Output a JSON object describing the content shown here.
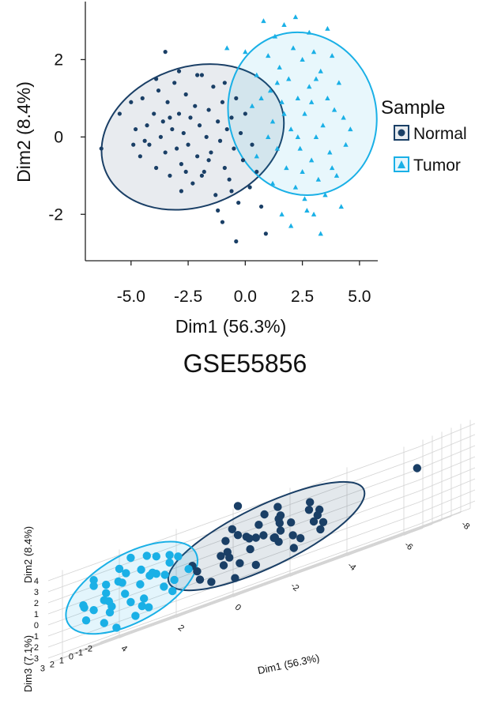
{
  "chart_data": [
    {
      "type": "scatter",
      "title": "",
      "xlabel": "Dim1 (56.3%)",
      "ylabel": "Dim2 (8.4%)",
      "xlim": [
        -7,
        5.8
      ],
      "ylim": [
        -3.2,
        3.5
      ],
      "xticks": [
        -5.0,
        -2.5,
        0.0,
        2.5,
        5.0
      ],
      "xtick_labels": [
        "-5.0",
        "-2.5",
        "0.0",
        "2.5",
        "5.0"
      ],
      "yticks": [
        2,
        0,
        -2
      ],
      "ytick_labels": [
        "2",
        "0",
        "-2"
      ],
      "grid": false,
      "legend": {
        "title": "Sample",
        "placement": "right",
        "entries": [
          "Normal",
          "Tumor"
        ]
      },
      "colors": {
        "Normal": "#1a3f66",
        "Tumor": "#1ab0e6"
      },
      "series": [
        {
          "name": "Normal",
          "marker": "circle",
          "ellipse": {
            "center": [
              -2.3,
              0.0
            ],
            "semi_axes": [
              4.1,
              1.8
            ],
            "angle_deg": -20
          },
          "points": [
            [
              -6.3,
              -0.3
            ],
            [
              -5.5,
              0.6
            ],
            [
              -5.0,
              0.9
            ],
            [
              -4.8,
              0.2
            ],
            [
              -4.6,
              -0.5
            ],
            [
              -4.5,
              1.0
            ],
            [
              -4.3,
              0.3
            ],
            [
              -4.2,
              -0.2
            ],
            [
              -4.0,
              0.6
            ],
            [
              -3.9,
              -0.8
            ],
            [
              -3.8,
              1.2
            ],
            [
              -3.7,
              0.0
            ],
            [
              -3.6,
              0.4
            ],
            [
              -3.5,
              -0.4
            ],
            [
              -3.4,
              0.9
            ],
            [
              -3.3,
              -1.0
            ],
            [
              -3.2,
              0.2
            ],
            [
              -3.1,
              1.4
            ],
            [
              -3.0,
              -0.3
            ],
            [
              -2.9,
              0.6
            ],
            [
              -2.8,
              -0.7
            ],
            [
              -2.7,
              0.1
            ],
            [
              -2.6,
              1.1
            ],
            [
              -2.5,
              -0.2
            ],
            [
              -2.4,
              0.5
            ],
            [
              -2.3,
              -1.2
            ],
            [
              -2.2,
              0.8
            ],
            [
              -2.1,
              -0.5
            ],
            [
              -2.0,
              0.3
            ],
            [
              -1.9,
              1.6
            ],
            [
              -1.8,
              -0.9
            ],
            [
              -1.7,
              0.0
            ],
            [
              -1.6,
              0.7
            ],
            [
              -1.5,
              -0.4
            ],
            [
              -1.4,
              1.3
            ],
            [
              -1.3,
              -1.5
            ],
            [
              -1.2,
              0.4
            ],
            [
              -1.1,
              -0.1
            ],
            [
              -1.0,
              0.9
            ],
            [
              -0.9,
              -0.8
            ],
            [
              -0.8,
              0.2
            ],
            [
              -0.7,
              -1.1
            ],
            [
              -0.6,
              0.5
            ],
            [
              -0.5,
              -0.3
            ],
            [
              -0.4,
              1.0
            ],
            [
              -0.3,
              -1.7
            ],
            [
              -0.2,
              0.1
            ],
            [
              -0.1,
              -0.6
            ],
            [
              0.0,
              0.6
            ],
            [
              0.2,
              -1.3
            ],
            [
              0.3,
              -0.2
            ],
            [
              0.5,
              -0.9
            ],
            [
              0.7,
              -1.8
            ],
            [
              0.9,
              -2.5
            ],
            [
              -0.4,
              -2.7
            ],
            [
              -3.5,
              2.2
            ],
            [
              -2.1,
              1.6
            ],
            [
              -1.2,
              -1.9
            ],
            [
              -2.8,
              -1.4
            ],
            [
              -3.9,
              1.5
            ],
            [
              -4.4,
              -0.1
            ],
            [
              -1.6,
              -0.6
            ],
            [
              -2.6,
              -0.9
            ],
            [
              -0.9,
              1.4
            ],
            [
              -3.3,
              0.5
            ],
            [
              -2.9,
              1.7
            ],
            [
              -1.0,
              -2.2
            ],
            [
              -1.9,
              -1.0
            ],
            [
              -0.6,
              -1.4
            ],
            [
              -4.9,
              -0.2
            ]
          ]
        },
        {
          "name": "Tumor",
          "marker": "triangle",
          "ellipse": {
            "center": [
              2.5,
              0.6
            ],
            "semi_axes": [
              3.6,
              1.9
            ],
            "angle_deg": 72
          },
          "points": [
            [
              -0.8,
              2.3
            ],
            [
              0.0,
              2.2
            ],
            [
              0.5,
              1.6
            ],
            [
              0.8,
              3.0
            ],
            [
              1.0,
              2.1
            ],
            [
              1.1,
              1.2
            ],
            [
              1.2,
              0.4
            ],
            [
              1.3,
              2.6
            ],
            [
              1.4,
              -0.3
            ],
            [
              1.5,
              1.8
            ],
            [
              1.6,
              0.9
            ],
            [
              1.7,
              2.9
            ],
            [
              1.8,
              -0.8
            ],
            [
              1.9,
              1.5
            ],
            [
              2.0,
              0.2
            ],
            [
              2.1,
              2.3
            ],
            [
              2.2,
              -1.3
            ],
            [
              2.3,
              1.0
            ],
            [
              2.4,
              -0.3
            ],
            [
              2.5,
              2.0
            ],
            [
              2.6,
              0.6
            ],
            [
              2.7,
              -1.9
            ],
            [
              2.8,
              1.3
            ],
            [
              2.9,
              -0.6
            ],
            [
              3.0,
              2.2
            ],
            [
              3.1,
              0.0
            ],
            [
              3.2,
              -1.1
            ],
            [
              3.3,
              1.7
            ],
            [
              3.4,
              0.3
            ],
            [
              3.5,
              -1.5
            ],
            [
              3.6,
              1.0
            ],
            [
              3.7,
              -0.4
            ],
            [
              3.8,
              2.1
            ],
            [
              3.9,
              0.7
            ],
            [
              4.0,
              -1.0
            ],
            [
              4.1,
              1.4
            ],
            [
              4.2,
              -1.8
            ],
            [
              4.3,
              0.5
            ],
            [
              4.4,
              -0.2
            ],
            [
              1.2,
              -1.2
            ],
            [
              1.6,
              -2.0
            ],
            [
              2.0,
              -2.3
            ],
            [
              2.6,
              -1.6
            ],
            [
              3.0,
              -2.0
            ],
            [
              3.3,
              -2.5
            ],
            [
              0.5,
              -0.5
            ],
            [
              1.0,
              0.0
            ],
            [
              0.3,
              0.8
            ],
            [
              2.8,
              2.7
            ],
            [
              2.2,
              3.1
            ],
            [
              3.6,
              2.8
            ],
            [
              1.4,
              1.4
            ],
            [
              2.9,
              0.9
            ],
            [
              2.3,
              0.0
            ],
            [
              3.8,
              -0.8
            ],
            [
              1.7,
              0.6
            ],
            [
              2.5,
              -0.9
            ],
            [
              3.1,
              1.5
            ],
            [
              0.7,
              1.0
            ],
            [
              4.6,
              0.2
            ]
          ]
        }
      ]
    },
    {
      "type": "scatter",
      "subtype": "3d",
      "title": "",
      "xlabel": "Dim1 (56.3%)",
      "ylabel": "Dim2 (8.4%)",
      "zlabel": "Dim3 (7.1%)",
      "xticks": [
        4,
        2,
        0,
        -2,
        -4,
        -6,
        -8
      ],
      "yticks": [
        4,
        3,
        2,
        1,
        0,
        -1,
        -2,
        -3
      ],
      "zticks": [
        3,
        2,
        1,
        0,
        -1,
        -2
      ],
      "grid": true,
      "colors": {
        "Normal": "#1a3f66",
        "Tumor": "#1ab0e6"
      },
      "series": [
        {
          "name": "Normal",
          "points": [
            [
              -3.0,
              1.2,
              0.4
            ],
            [
              -2.5,
              1.5,
              0.1
            ],
            [
              -1.8,
              0.9,
              -0.3
            ],
            [
              -1.2,
              1.8,
              0.6
            ],
            [
              -3.5,
              0.5,
              -0.5
            ],
            [
              -2.8,
              2.2,
              0.9
            ],
            [
              -1.5,
              0.1,
              0.2
            ],
            [
              -2.0,
              1.0,
              1.1
            ],
            [
              -3.8,
              1.4,
              -0.2
            ],
            [
              -0.8,
              0.6,
              0.5
            ],
            [
              -2.2,
              -0.2,
              -0.7
            ],
            [
              -1.0,
              1.3,
              -0.9
            ],
            [
              -3.2,
              0.0,
              0.8
            ],
            [
              -2.6,
              0.8,
              0.3
            ],
            [
              -1.6,
              2.0,
              -0.4
            ],
            [
              -0.5,
              -0.5,
              0.0
            ],
            [
              -0.2,
              0.4,
              -0.6
            ],
            [
              0.2,
              -1.0,
              0.4
            ],
            [
              -4.0,
              1.0,
              0.6
            ],
            [
              -3.6,
              2.4,
              0.2
            ],
            [
              -2.9,
              -0.6,
              -0.9
            ],
            [
              -2.4,
              1.9,
              -0.1
            ],
            [
              -1.3,
              -0.8,
              0.7
            ],
            [
              -0.9,
              2.5,
              0.3
            ],
            [
              -1.9,
              0.3,
              -1.2
            ],
            [
              -4.3,
              0.2,
              0.9
            ],
            [
              -3.3,
              1.7,
              -0.6
            ],
            [
              -2.1,
              2.8,
              0.5
            ],
            [
              -1.4,
              1.1,
              0.0
            ],
            [
              -0.6,
              0.0,
              -0.3
            ],
            [
              0.4,
              0.5,
              0.6
            ],
            [
              0.0,
              -1.6,
              -0.2
            ],
            [
              -2.7,
              0.4,
              1.3
            ],
            [
              -3.9,
              -0.4,
              0.0
            ],
            [
              -1.7,
              -1.5,
              0.2
            ],
            [
              -0.3,
              1.6,
              -0.8
            ],
            [
              -2.3,
              3.0,
              -0.3
            ],
            [
              -3.1,
              -1.2,
              0.4
            ],
            [
              -1.1,
              -2.0,
              0.6
            ],
            [
              0.6,
              -0.2,
              -0.5
            ],
            [
              -7.5,
              2.0,
              0.6
            ],
            [
              -1.0,
              4.4,
              0.0
            ]
          ]
        },
        {
          "name": "Tumor",
          "points": [
            [
              2.0,
              1.0,
              0.3
            ],
            [
              2.5,
              0.5,
              -0.2
            ],
            [
              3.0,
              1.5,
              0.6
            ],
            [
              3.5,
              0.0,
              0.1
            ],
            [
              1.8,
              -0.5,
              -0.6
            ],
            [
              2.8,
              2.0,
              0.4
            ],
            [
              3.2,
              -1.0,
              0.9
            ],
            [
              1.5,
              1.5,
              -0.3
            ],
            [
              2.2,
              -1.5,
              0.5
            ],
            [
              3.8,
              0.8,
              -0.5
            ],
            [
              4.0,
              -0.3,
              0.2
            ],
            [
              2.6,
              0.2,
              1.1
            ],
            [
              1.9,
              2.5,
              -0.1
            ],
            [
              3.4,
              1.2,
              -1.0
            ],
            [
              2.9,
              -0.8,
              -0.4
            ],
            [
              1.3,
              0.6,
              0.8
            ],
            [
              3.6,
              -1.8,
              0.3
            ],
            [
              2.4,
              1.8,
              0.0
            ],
            [
              4.2,
              0.5,
              0.7
            ],
            [
              1.6,
              -1.2,
              -0.9
            ],
            [
              3.1,
              2.6,
              0.2
            ],
            [
              2.7,
              -2.2,
              -0.3
            ],
            [
              3.9,
              1.9,
              0.5
            ],
            [
              1.2,
              -0.2,
              0.1
            ],
            [
              2.1,
              0.9,
              -0.7
            ],
            [
              4.4,
              -1.0,
              -0.2
            ],
            [
              3.3,
              0.3,
              1.2
            ],
            [
              1.7,
              1.2,
              0.9
            ],
            [
              2.3,
              -0.9,
              0.0
            ],
            [
              3.7,
              -0.6,
              -0.8
            ],
            [
              2.0,
              2.9,
              0.6
            ],
            [
              2.9,
              3.2,
              -0.4
            ],
            [
              1.0,
              1.8,
              0.3
            ],
            [
              4.1,
              2.4,
              -0.1
            ],
            [
              3.0,
              -2.6,
              0.8
            ],
            [
              2.5,
              -1.9,
              -1.1
            ],
            [
              1.4,
              2.2,
              0.0
            ],
            [
              3.5,
              1.6,
              0.4
            ],
            [
              4.6,
              0.2,
              -0.6
            ],
            [
              0.8,
              0.3,
              -0.2
            ]
          ]
        }
      ]
    }
  ],
  "caption": "GSE55856"
}
